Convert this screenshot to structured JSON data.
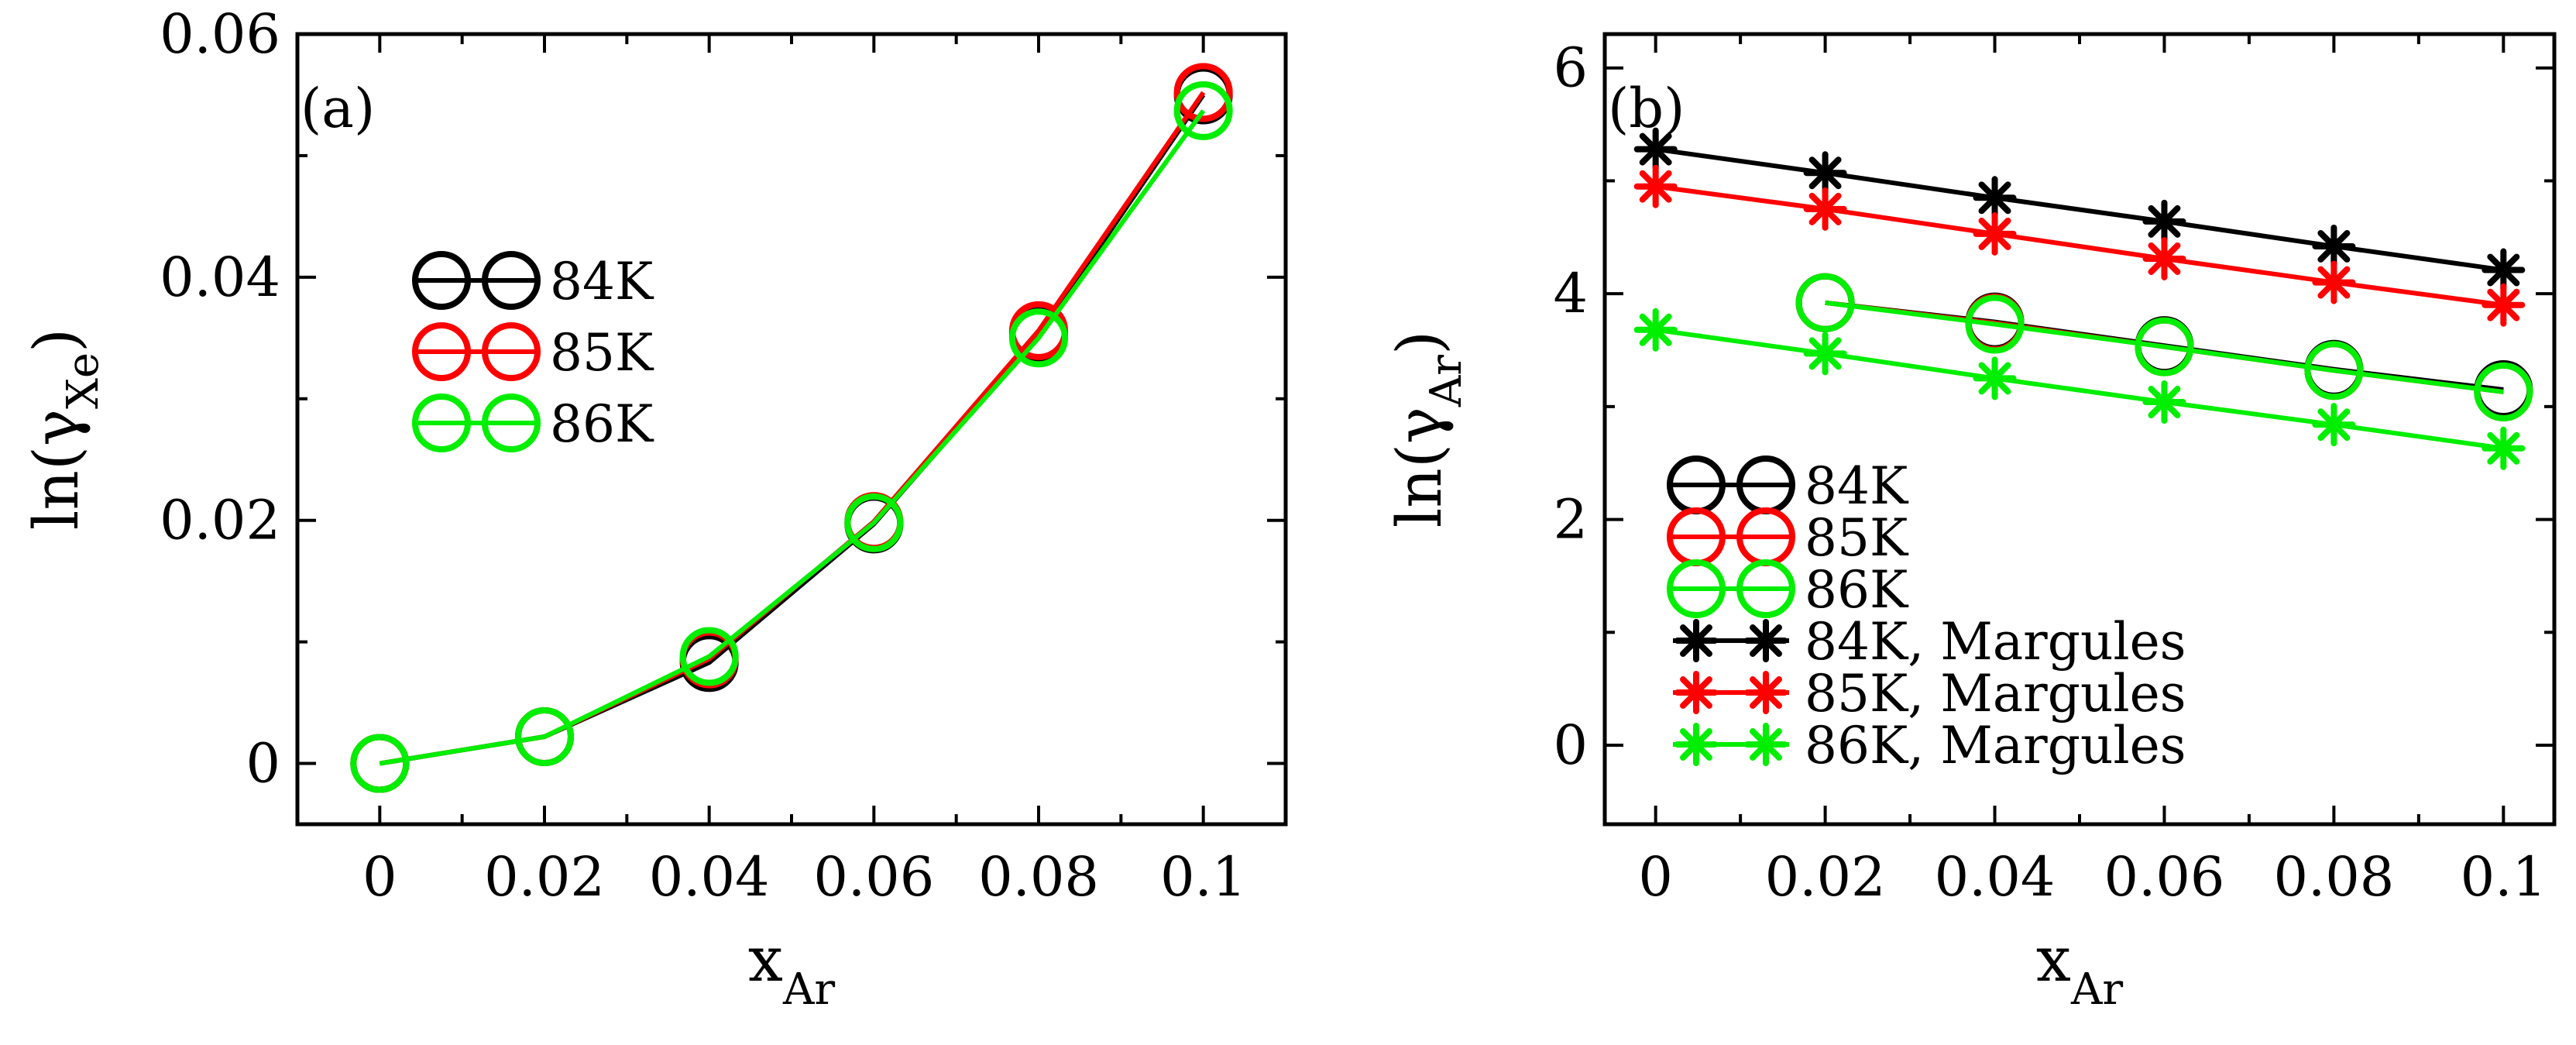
{
  "chart_data": [
    {
      "type": "line",
      "panel_label": "(a)",
      "xlabel": {
        "base": "x",
        "sub": "Ar"
      },
      "ylabel": {
        "prefix": "ln(",
        "greek": "γ",
        "sub": "Xe",
        "suffix": ")"
      },
      "xlim": [
        -0.01,
        0.11
      ],
      "ylim": [
        -0.005,
        0.06
      ],
      "xticks": [
        0,
        0.02,
        0.04,
        0.06,
        0.08,
        0.1
      ],
      "xtick_labels": [
        "0",
        "0.02",
        "0.04",
        "0.06",
        "0.08",
        "0.1"
      ],
      "yticks": [
        0,
        0.02,
        0.04,
        0.06
      ],
      "ytick_labels": [
        "0",
        "0.02",
        "0.04",
        "0.06"
      ],
      "legend_position": "upper-left",
      "x": [
        0,
        0.02,
        0.04,
        0.06,
        0.08,
        0.1
      ],
      "series": [
        {
          "name": "84K",
          "color": "#000000",
          "marker": "circle",
          "values": [
            0,
            0.0022,
            0.0083,
            0.0197,
            0.0352,
            0.055
          ]
        },
        {
          "name": "85K",
          "color": "#ff0000",
          "marker": "circle",
          "values": [
            0,
            0.0022,
            0.0086,
            0.0199,
            0.0356,
            0.0552
          ]
        },
        {
          "name": "86K",
          "color": "#00ee00",
          "marker": "circle",
          "values": [
            0,
            0.0022,
            0.0088,
            0.0198,
            0.035,
            0.0537
          ]
        }
      ]
    },
    {
      "type": "line",
      "panel_label": "(b)",
      "xlabel": {
        "base": "x",
        "sub": "Ar"
      },
      "ylabel": {
        "prefix": "ln(",
        "greek": "γ",
        "sub": "Ar",
        "suffix": ")"
      },
      "xlim": [
        -0.006,
        0.106
      ],
      "ylim": [
        -0.7,
        6.3
      ],
      "xticks": [
        0,
        0.02,
        0.04,
        0.06,
        0.08,
        0.1
      ],
      "xtick_labels": [
        "0",
        "0.02",
        "0.04",
        "0.06",
        "0.08",
        "0.1"
      ],
      "yticks": [
        0,
        2,
        4,
        6
      ],
      "ytick_labels": [
        "0",
        "2",
        "4",
        "6"
      ],
      "legend_position": "lower-left",
      "x": [
        0,
        0.02,
        0.04,
        0.06,
        0.08,
        0.1
      ],
      "series": [
        {
          "name": "84K",
          "color": "#000000",
          "marker": "circle",
          "values": [
            null,
            3.92,
            3.75,
            3.54,
            3.33,
            3.15
          ]
        },
        {
          "name": "85K",
          "color": "#ff0000",
          "marker": "circle",
          "values": [
            null,
            3.92,
            3.74,
            3.53,
            3.32,
            3.13
          ]
        },
        {
          "name": "86K",
          "color": "#00ee00",
          "marker": "circle",
          "values": [
            null,
            3.92,
            3.73,
            3.53,
            3.32,
            3.13
          ]
        },
        {
          "name": "84K, Margules",
          "color": "#000000",
          "marker": "asterisk",
          "values": [
            5.28,
            5.07,
            4.85,
            4.64,
            4.42,
            4.21
          ]
        },
        {
          "name": "85K, Margules",
          "color": "#ff0000",
          "marker": "asterisk",
          "values": [
            4.95,
            4.75,
            4.53,
            4.31,
            4.1,
            3.9
          ]
        },
        {
          "name": "86K, Margules",
          "color": "#00ee00",
          "marker": "asterisk",
          "values": [
            3.68,
            3.47,
            3.25,
            3.04,
            2.84,
            2.63
          ]
        }
      ]
    }
  ]
}
